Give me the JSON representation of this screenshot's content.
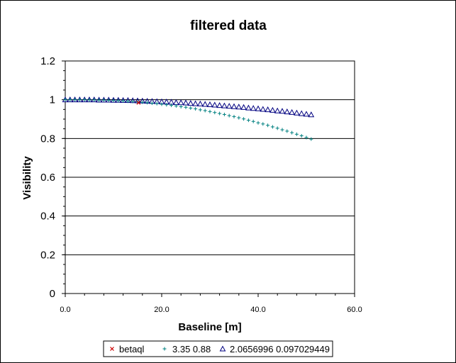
{
  "chart_data": {
    "type": "scatter",
    "title": "filtered data",
    "xlabel": "Baseline [m]",
    "ylabel": "Visibility",
    "xlim": [
      0,
      60
    ],
    "ylim": [
      0,
      1.2
    ],
    "x_ticks": [
      "0.0",
      "20.0",
      "40.0",
      "60.0"
    ],
    "y_ticks": [
      "0",
      "0.2",
      "0.4",
      "0.6",
      "0.8",
      "1",
      "1.2"
    ],
    "grid": "horizontal major",
    "legend_position": "bottom",
    "series": [
      {
        "name": "betaql",
        "marker": "x",
        "color": "#cc0000",
        "x": [
          15.2
        ],
        "y": [
          0.985
        ]
      },
      {
        "name": "3.35 0.88",
        "marker": "+",
        "color": "#008080",
        "x": [
          0,
          1,
          2,
          3,
          4,
          5,
          6,
          7,
          8,
          9,
          10,
          11,
          12,
          13,
          14,
          15,
          16,
          17,
          18,
          19,
          20,
          21,
          22,
          23,
          24,
          25,
          26,
          27,
          28,
          29,
          30,
          31,
          32,
          33,
          34,
          35,
          36,
          37,
          38,
          39,
          40,
          41,
          42,
          43,
          44,
          45,
          46,
          47,
          48,
          49,
          50,
          51
        ],
        "y": [
          1.0,
          1.0,
          1.0,
          1.0,
          1.0,
          0.999,
          0.999,
          0.998,
          0.998,
          0.997,
          0.996,
          0.995,
          0.994,
          0.992,
          0.991,
          0.989,
          0.987,
          0.985,
          0.982,
          0.98,
          0.977,
          0.974,
          0.971,
          0.968,
          0.964,
          0.961,
          0.957,
          0.953,
          0.948,
          0.944,
          0.939,
          0.934,
          0.929,
          0.924,
          0.918,
          0.913,
          0.907,
          0.901,
          0.894,
          0.888,
          0.881,
          0.875,
          0.868,
          0.86,
          0.853,
          0.845,
          0.838,
          0.83,
          0.822,
          0.814,
          0.805,
          0.797
        ]
      },
      {
        "name": "2.0656996 0.097029449",
        "marker": "triangle",
        "color": "#000080",
        "x": [
          0,
          1,
          2,
          3,
          4,
          5,
          6,
          7,
          8,
          9,
          10,
          11,
          12,
          13,
          14,
          15,
          16,
          17,
          18,
          19,
          20,
          21,
          22,
          23,
          24,
          25,
          26,
          27,
          28,
          29,
          30,
          31,
          32,
          33,
          34,
          35,
          36,
          37,
          38,
          39,
          40,
          41,
          42,
          43,
          44,
          45,
          46,
          47,
          48,
          49,
          50,
          51
        ],
        "y": [
          1.0,
          1.0,
          1.0,
          1.0,
          1.0,
          1.0,
          1.0,
          0.999,
          0.999,
          0.999,
          0.998,
          0.998,
          0.997,
          0.997,
          0.996,
          0.995,
          0.994,
          0.993,
          0.992,
          0.991,
          0.99,
          0.989,
          0.988,
          0.986,
          0.985,
          0.984,
          0.982,
          0.98,
          0.979,
          0.977,
          0.975,
          0.973,
          0.971,
          0.969,
          0.967,
          0.965,
          0.963,
          0.961,
          0.958,
          0.956,
          0.954,
          0.951,
          0.949,
          0.946,
          0.943,
          0.941,
          0.938,
          0.935,
          0.932,
          0.929,
          0.926,
          0.923
        ]
      }
    ]
  }
}
